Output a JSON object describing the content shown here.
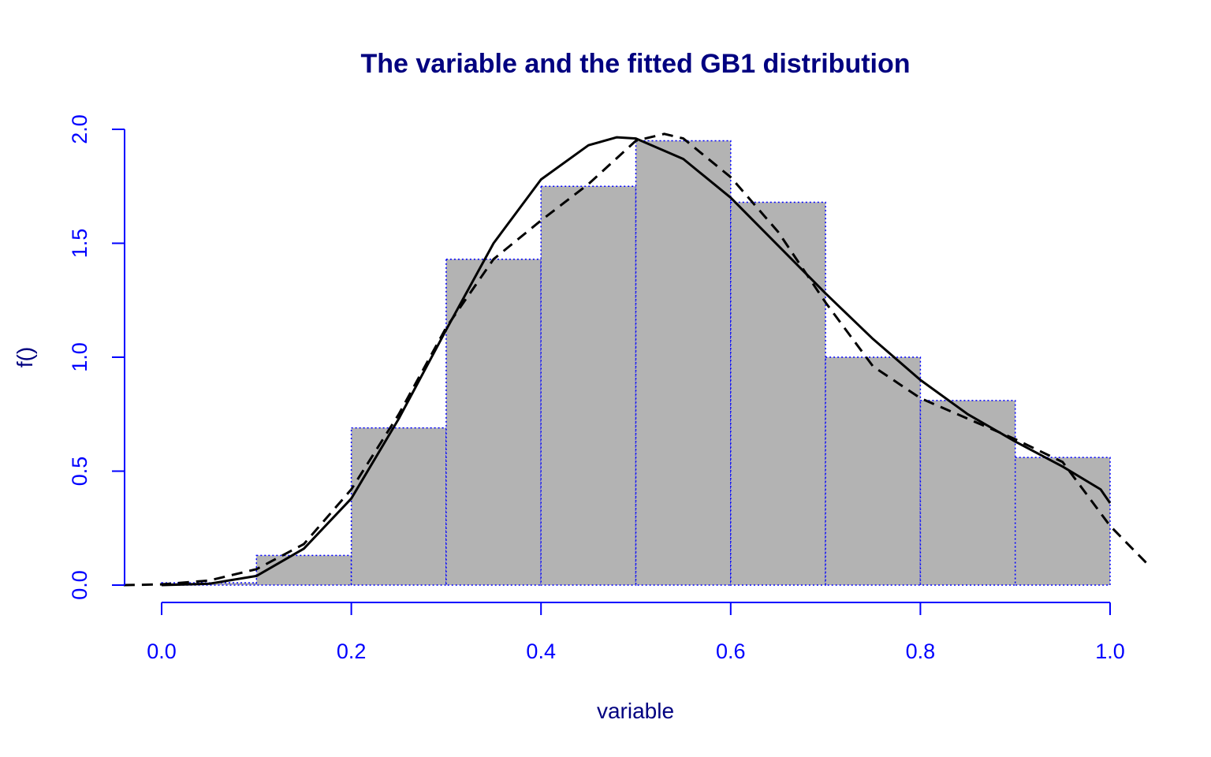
{
  "chart_data": {
    "type": "bar",
    "title": "The variable and the fitted GB1 distribution",
    "xlabel": "variable",
    "ylabel": "f()",
    "xlim": [
      0.0,
      1.0
    ],
    "ylim": [
      0.0,
      2.0
    ],
    "x_ticks": [
      "0.0",
      "0.2",
      "0.4",
      "0.6",
      "0.8",
      "1.0"
    ],
    "y_ticks": [
      "0.0",
      "0.5",
      "1.0",
      "1.5",
      "2.0"
    ],
    "grid": false,
    "histogram": {
      "bins": [
        [
          0.0,
          0.1
        ],
        [
          0.1,
          0.2
        ],
        [
          0.2,
          0.3
        ],
        [
          0.3,
          0.4
        ],
        [
          0.4,
          0.5
        ],
        [
          0.5,
          0.6
        ],
        [
          0.6,
          0.7
        ],
        [
          0.7,
          0.8
        ],
        [
          0.8,
          0.9
        ],
        [
          0.9,
          1.0
        ]
      ],
      "values": [
        0.01,
        0.13,
        0.69,
        1.43,
        1.75,
        1.95,
        1.68,
        1.0,
        0.81,
        0.56
      ]
    },
    "series": [
      {
        "style": "solid",
        "x": [
          0.0,
          0.05,
          0.1,
          0.15,
          0.2,
          0.25,
          0.3,
          0.35,
          0.4,
          0.45,
          0.48,
          0.5,
          0.55,
          0.6,
          0.65,
          0.7,
          0.75,
          0.8,
          0.85,
          0.9,
          0.95,
          0.99,
          1.0
        ],
        "y": [
          0.0,
          0.006,
          0.04,
          0.16,
          0.38,
          0.73,
          1.12,
          1.5,
          1.78,
          1.93,
          1.965,
          1.96,
          1.87,
          1.7,
          1.49,
          1.28,
          1.08,
          0.9,
          0.75,
          0.63,
          0.52,
          0.42,
          0.36
        ]
      },
      {
        "style": "dashed",
        "x": [
          -0.04,
          0.0,
          0.05,
          0.1,
          0.15,
          0.2,
          0.25,
          0.3,
          0.35,
          0.4,
          0.45,
          0.5,
          0.53,
          0.55,
          0.6,
          0.65,
          0.7,
          0.75,
          0.8,
          0.85,
          0.9,
          0.95,
          1.0,
          1.04
        ],
        "y": [
          0.0,
          0.003,
          0.02,
          0.07,
          0.18,
          0.42,
          0.75,
          1.13,
          1.43,
          1.6,
          1.76,
          1.95,
          1.98,
          1.96,
          1.79,
          1.55,
          1.24,
          0.96,
          0.82,
          0.73,
          0.64,
          0.54,
          0.26,
          0.09
        ]
      }
    ],
    "colors": {
      "title": "#000080",
      "axis_label": "#000080",
      "axis": "#0000ff",
      "bar_fill": "#b3b3b3",
      "bar_border": "#0000ff",
      "curve": "#000000"
    }
  }
}
